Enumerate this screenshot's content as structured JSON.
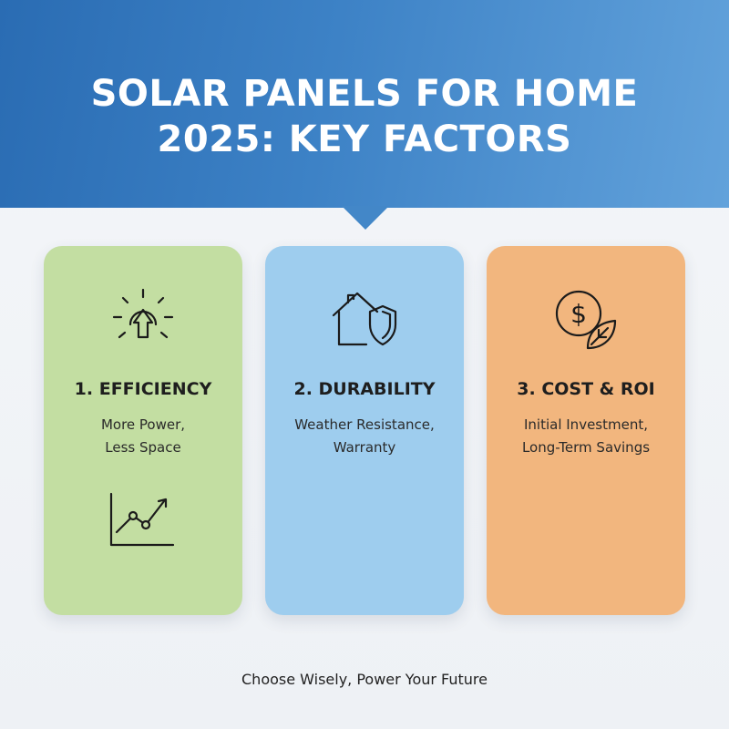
{
  "header": {
    "title_line1": "SOLAR PANELS FOR HOME",
    "title_line2": "2025: KEY FACTORS",
    "background_start": "#2a6cb3",
    "background_end": "#62a2db"
  },
  "cards": [
    {
      "heading": "1. EFFICIENCY",
      "line1": "More Power,",
      "line2": "Less Space",
      "color": "#c3dea2",
      "icon": "sun-arrow-up-icon",
      "extra_icon": "trend-chart-icon"
    },
    {
      "heading": "2. DURABILITY",
      "line1": "Weather Resistance,",
      "line2": "Warranty",
      "color": "#9ecdee",
      "icon": "house-shield-icon"
    },
    {
      "heading": "3. COST & ROI",
      "line1": "Initial Investment,",
      "line2": "Long-Term Savings",
      "color": "#f2b67e",
      "icon": "dollar-leaf-icon",
      "dollar_symbol": "$"
    }
  ],
  "footer": {
    "tagline": "Choose Wisely, Power Your Future"
  }
}
